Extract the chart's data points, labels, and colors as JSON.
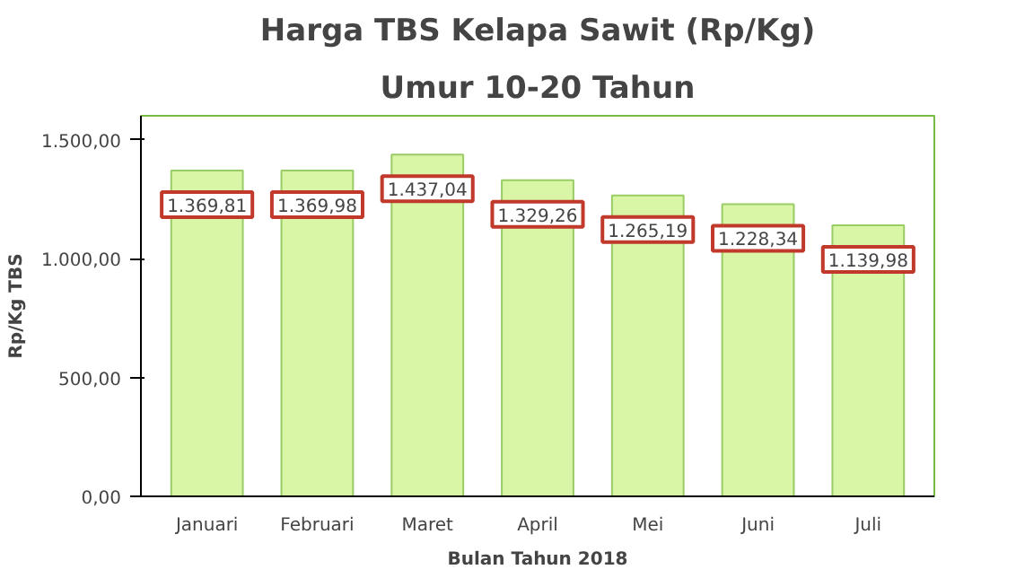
{
  "chart_data": {
    "type": "bar",
    "title": "Harga TBS Kelapa Sawit (Rp/Kg)",
    "subtitle": "Umur 10-20 Tahun",
    "xlabel": "Bulan Tahun 2018",
    "ylabel": "Rp/Kg TBS",
    "categories": [
      "Januari",
      "Februari",
      "Maret",
      "April",
      "Mei",
      "Juni",
      "Juli"
    ],
    "values": [
      1369.81,
      1369.98,
      1437.04,
      1329.26,
      1265.19,
      1228.34,
      1139.98
    ],
    "value_labels": [
      "1.369,81",
      "1.369,98",
      "1.437,04",
      "1.329,26",
      "1.265,19",
      "1.228,34",
      "1.139,98"
    ],
    "color": "#d9f5a6",
    "ylim": [
      0,
      1600
    ],
    "yticks": [
      {
        "value": 0,
        "label": "0,00"
      },
      {
        "value": 500,
        "label": "500,00"
      },
      {
        "value": 1000,
        "label": "1.000,00"
      },
      {
        "value": 1500,
        "label": "1.500,00"
      }
    ],
    "grid": false
  }
}
